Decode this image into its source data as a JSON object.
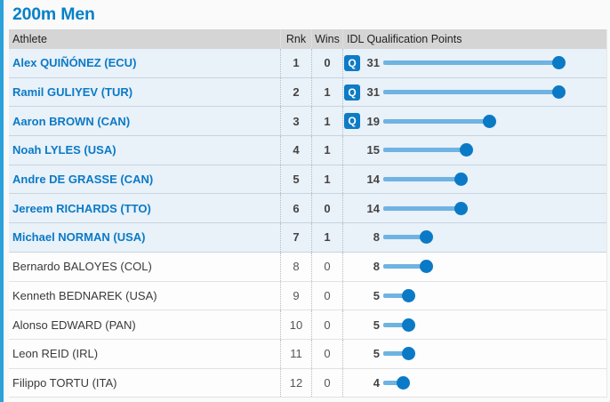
{
  "page": {
    "title": "200m Men",
    "accent_color": "#2ba2da",
    "link_color": "#0a7ac6",
    "bar_line_color": "#6fb3e2",
    "bar_dot_color": "#0b7ac6",
    "q_badge_color": "#0e7bc6",
    "header_bg": "#d5d5d5",
    "highlight_row_bg": "#e9f1f9"
  },
  "table": {
    "columns": [
      "Athlete",
      "Rnk",
      "Wins",
      "IDL Qualification Points"
    ],
    "q_label": "Q",
    "rows": [
      {
        "athlete": "Alex QUIÑÓNEZ (ECU)",
        "rank": "1",
        "wins": "0",
        "q": true,
        "points": 31,
        "highlight": true
      },
      {
        "athlete": "Ramil GULIYEV (TUR)",
        "rank": "2",
        "wins": "1",
        "q": true,
        "points": 31,
        "highlight": true
      },
      {
        "athlete": "Aaron BROWN (CAN)",
        "rank": "3",
        "wins": "1",
        "q": true,
        "points": 19,
        "highlight": true
      },
      {
        "athlete": "Noah LYLES (USA)",
        "rank": "4",
        "wins": "1",
        "q": false,
        "points": 15,
        "highlight": true
      },
      {
        "athlete": "Andre DE GRASSE (CAN)",
        "rank": "5",
        "wins": "1",
        "q": false,
        "points": 14,
        "highlight": true
      },
      {
        "athlete": "Jereem RICHARDS (TTO)",
        "rank": "6",
        "wins": "0",
        "q": false,
        "points": 14,
        "highlight": true
      },
      {
        "athlete": "Michael NORMAN (USA)",
        "rank": "7",
        "wins": "1",
        "q": false,
        "points": 8,
        "highlight": true
      },
      {
        "athlete": "Bernardo BALOYES (COL)",
        "rank": "8",
        "wins": "0",
        "q": false,
        "points": 8,
        "highlight": false
      },
      {
        "athlete": "Kenneth BEDNAREK (USA)",
        "rank": "9",
        "wins": "0",
        "q": false,
        "points": 5,
        "highlight": false
      },
      {
        "athlete": "Alonso EDWARD (PAN)",
        "rank": "10",
        "wins": "0",
        "q": false,
        "points": 5,
        "highlight": false
      },
      {
        "athlete": "Leon REID (IRL)",
        "rank": "11",
        "wins": "0",
        "q": false,
        "points": 5,
        "highlight": false
      },
      {
        "athlete": "Filippo TORTU (ITA)",
        "rank": "12",
        "wins": "0",
        "q": false,
        "points": 4,
        "highlight": false
      }
    ]
  }
}
